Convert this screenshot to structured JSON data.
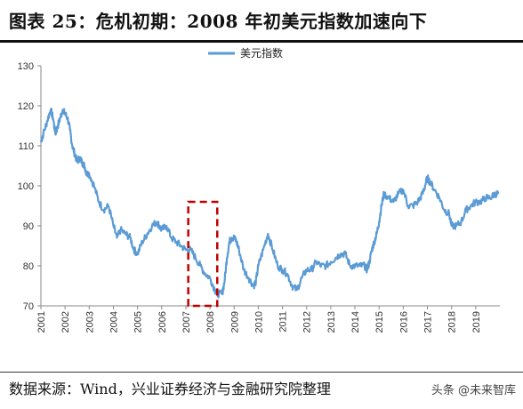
{
  "title": "图表 25：危机初期：2008 年初美元指数加速向下",
  "source": "数据来源：Wind，兴业证券经济与金融研究院整理",
  "watermark": "头条 @未来智库",
  "colors": {
    "series": "#5b9bd5",
    "highlight": "#c00000",
    "axis": "#888888"
  },
  "chart_data": {
    "type": "line",
    "series": [
      {
        "name": "美元指数",
        "x": [
          2001.0,
          2001.1,
          2001.25,
          2001.4,
          2001.5,
          2001.6,
          2001.7,
          2001.8,
          2001.9,
          2002.0,
          2002.1,
          2002.2,
          2002.3,
          2002.4,
          2002.5,
          2002.6,
          2002.7,
          2002.8,
          2002.9,
          2003.0,
          2003.2,
          2003.4,
          2003.6,
          2003.8,
          2004.0,
          2004.15,
          2004.3,
          2004.5,
          2004.7,
          2004.85,
          2005.0,
          2005.2,
          2005.4,
          2005.6,
          2005.8,
          2005.9,
          2006.0,
          2006.2,
          2006.4,
          2006.6,
          2006.8,
          2007.0,
          2007.2,
          2007.4,
          2007.6,
          2007.8,
          2008.0,
          2008.2,
          2008.3,
          2008.5,
          2008.6,
          2008.7,
          2008.8,
          2008.9,
          2009.0,
          2009.1,
          2009.2,
          2009.4,
          2009.6,
          2009.8,
          2009.9,
          2010.0,
          2010.2,
          2010.4,
          2010.6,
          2010.8,
          2011.0,
          2011.2,
          2011.4,
          2011.6,
          2011.8,
          2012.0,
          2012.2,
          2012.4,
          2012.6,
          2012.8,
          2013.0,
          2013.2,
          2013.4,
          2013.6,
          2013.8,
          2014.0,
          2014.2,
          2014.4,
          2014.5,
          2014.6,
          2014.7,
          2014.8,
          2014.9,
          2015.0,
          2015.1,
          2015.2,
          2015.4,
          2015.6,
          2015.8,
          2016.0,
          2016.2,
          2016.4,
          2016.6,
          2016.8,
          2016.9,
          2017.0,
          2017.1,
          2017.3,
          2017.5,
          2017.7,
          2017.9,
          2018.0,
          2018.2,
          2018.4,
          2018.6,
          2018.8,
          2019.0,
          2019.2,
          2019.4,
          2019.6,
          2019.8,
          2019.95
        ],
        "y": [
          111,
          113,
          116,
          119,
          117,
          113,
          115,
          117,
          119,
          118,
          117,
          114,
          110,
          108,
          106,
          107,
          106,
          105,
          103,
          103,
          100,
          96,
          94,
          95,
          90,
          87,
          89,
          88,
          87,
          84,
          83,
          86,
          88,
          90,
          91,
          90,
          89,
          90,
          87,
          86,
          85,
          84,
          84,
          82,
          80,
          78,
          77,
          74,
          73,
          73,
          76,
          82,
          86,
          87,
          87,
          86,
          84,
          79,
          77,
          75,
          76,
          80,
          84,
          88,
          84,
          80,
          79,
          78,
          75,
          74,
          77,
          79,
          79,
          81,
          80,
          80,
          81,
          82,
          83,
          83,
          80,
          80,
          80,
          80,
          79,
          81,
          84,
          86,
          88,
          91,
          95,
          98,
          97,
          96,
          98,
          99,
          95,
          95,
          96,
          98,
          100,
          102,
          101,
          99,
          97,
          94,
          93,
          90,
          90,
          91,
          94,
          95,
          96,
          96,
          97,
          97,
          98,
          98
        ]
      }
    ],
    "x_tick_labels": [
      "2001",
      "2002",
      "2003",
      "2004",
      "2005",
      "2006",
      "2007",
      "2008",
      "2009",
      "2010",
      "2011",
      "2012",
      "2013",
      "2014",
      "2015",
      "2016",
      "2017",
      "2018",
      "2019"
    ],
    "y_tick_labels": [
      "70",
      "80",
      "90",
      "100",
      "110",
      "120",
      "130"
    ],
    "xlim": [
      2001,
      2020
    ],
    "ylim": [
      70,
      130
    ],
    "legend_position": "top-center",
    "highlight_box": {
      "x": [
        2007.1,
        2008.3
      ],
      "y": [
        70,
        96
      ],
      "style": "dashed",
      "color": "#c00000"
    }
  }
}
